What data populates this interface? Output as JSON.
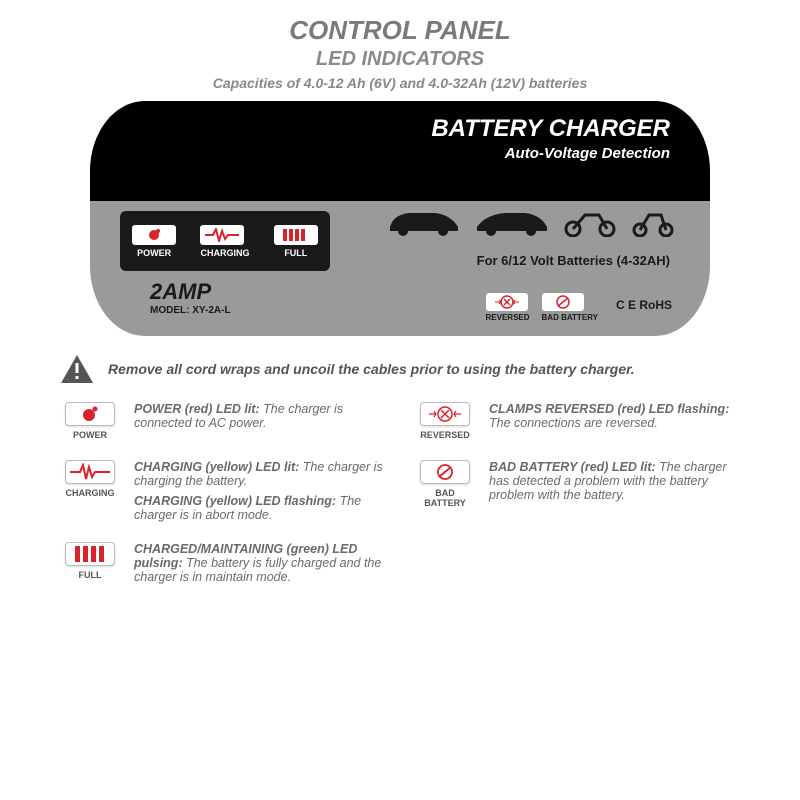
{
  "header": {
    "title": "CONTROL PANEL",
    "subtitle": "LED INDICATORS",
    "capacity": "Capacities of 4.0-12 Ah (6V) and 4.0-32Ah (12V) batteries"
  },
  "panel": {
    "title": "BATTERY CHARGER",
    "subtitle": "Auto-Voltage Detection",
    "indicators": [
      {
        "label": "POWER",
        "icon_color": "#d8232a",
        "icon": "power"
      },
      {
        "label": "CHARGING",
        "icon_color": "#d8232a",
        "icon": "pulse"
      },
      {
        "label": "FULL",
        "icon_color": "#d8232a",
        "icon": "bars"
      }
    ],
    "batt_line": "For 6/12 Volt Batteries (4-32AH)",
    "amp": "2AMP",
    "model": "MODEL: XY-2A-L",
    "status": [
      {
        "label": "REVERSED",
        "icon": "reversed"
      },
      {
        "label": "BAD BATTERY",
        "icon": "badbatt"
      }
    ],
    "certs": "C E  RoHS",
    "colors": {
      "panel_bg": "#9a9a9a",
      "panel_top_bg": "#000000",
      "indicator_box_bg": "#1a1a1a",
      "icon_red": "#d8232a"
    }
  },
  "warning": "Remove all cord wraps and uncoil the cables prior to using the battery charger.",
  "legend": [
    {
      "icon": "power",
      "icon_label": "POWER",
      "lines": [
        {
          "strong": "POWER (red) LED lit:",
          "rest": " The charger is connected to AC power."
        }
      ]
    },
    {
      "icon": "reversed",
      "icon_label": "REVERSED",
      "lines": [
        {
          "strong": "CLAMPS REVERSED (red) LED flashing:",
          "rest": " The connections are reversed."
        }
      ]
    },
    {
      "icon": "pulse",
      "icon_label": "CHARGING",
      "lines": [
        {
          "strong": "CHARGING (yellow) LED lit:",
          "rest": " The charger is charging the battery."
        },
        {
          "strong": "CHARGING (yellow) LED flashing:",
          "rest": " The charger is in abort mode."
        }
      ]
    },
    {
      "icon": "badbatt",
      "icon_label": "BAD BATTERY",
      "lines": [
        {
          "strong": "BAD BATTERY (red) LED lit:",
          "rest": " The charger has detected a problem with the battery problem with the battery."
        }
      ]
    },
    {
      "icon": "bars",
      "icon_label": "FULL",
      "lines": [
        {
          "strong": "CHARGED/MAINTAINING (green) LED pulsing:",
          "rest": " The battery is fully charged and the charger is in maintain mode."
        }
      ]
    }
  ]
}
